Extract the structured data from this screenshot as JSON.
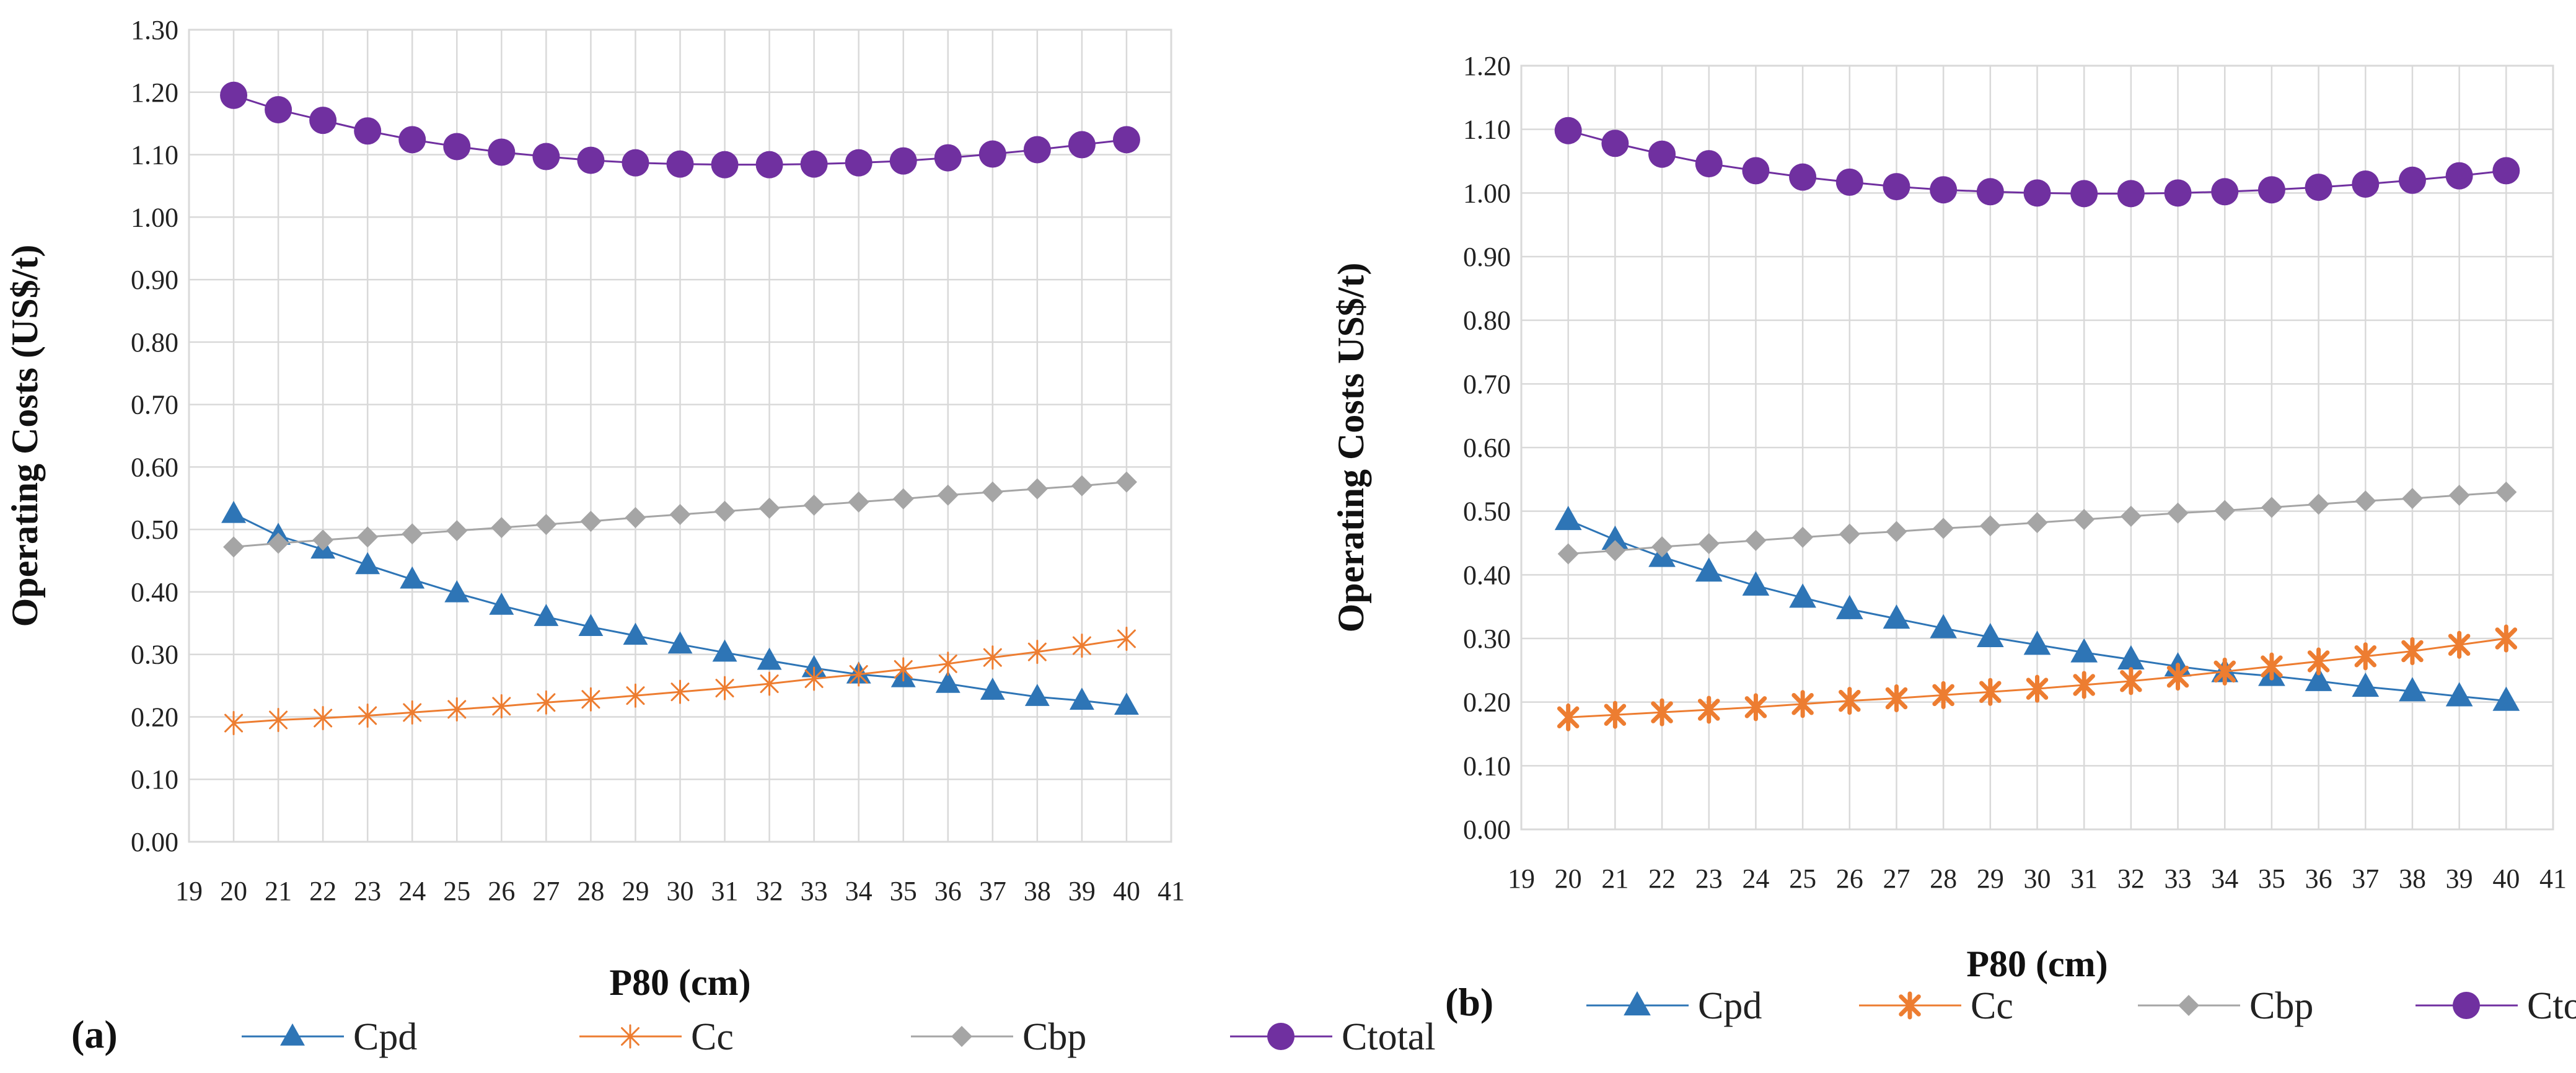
{
  "colors": {
    "Cpd": "#2E75B6",
    "Cc": "#ED7D31",
    "Cbp": "#A5A5A5",
    "Ctotal": "#7030A0",
    "grid": "#D9D9D9"
  },
  "chart_data": [
    {
      "panel_label": "(a)",
      "type": "line",
      "title": "",
      "xlabel": "P80 (cm)",
      "ylabel": "Operating Costs (US$/t)",
      "xlim": [
        19,
        41
      ],
      "ylim": [
        0.0,
        1.3
      ],
      "xticks": [
        "19",
        "20",
        "21",
        "22",
        "23",
        "24",
        "25",
        "26",
        "27",
        "28",
        "29",
        "30",
        "31",
        "32",
        "33",
        "34",
        "35",
        "36",
        "37",
        "38",
        "39",
        "40",
        "41"
      ],
      "yticks": [
        "0.00",
        "0.10",
        "0.20",
        "0.30",
        "0.40",
        "0.50",
        "0.60",
        "0.70",
        "0.80",
        "0.90",
        "1.00",
        "1.10",
        "1.20",
        "1.30"
      ],
      "grid": true,
      "legend_position": "bottom",
      "x": [
        20,
        21,
        22,
        23,
        24,
        25,
        26,
        27,
        28,
        29,
        30,
        31,
        32,
        33,
        34,
        35,
        36,
        37,
        38,
        39,
        40
      ],
      "series": [
        {
          "name": "Cpd",
          "marker": "triangle",
          "values": [
            0.525,
            0.49,
            0.468,
            0.443,
            0.42,
            0.398,
            0.378,
            0.36,
            0.344,
            0.33,
            0.316,
            0.303,
            0.29,
            0.278,
            0.268,
            0.262,
            0.253,
            0.242,
            0.232,
            0.226,
            0.218
          ]
        },
        {
          "name": "Cc",
          "marker": "star",
          "values": [
            0.19,
            0.195,
            0.198,
            0.202,
            0.207,
            0.212,
            0.217,
            0.223,
            0.228,
            0.234,
            0.24,
            0.246,
            0.253,
            0.261,
            0.268,
            0.276,
            0.285,
            0.295,
            0.304,
            0.314,
            0.325
          ]
        },
        {
          "name": "Cbp",
          "marker": "diamond",
          "values": [
            0.472,
            0.478,
            0.483,
            0.488,
            0.493,
            0.498,
            0.503,
            0.508,
            0.513,
            0.519,
            0.524,
            0.529,
            0.534,
            0.539,
            0.544,
            0.549,
            0.555,
            0.56,
            0.565,
            0.57,
            0.576
          ]
        },
        {
          "name": "Ctotal",
          "marker": "circle",
          "values": [
            1.195,
            1.172,
            1.155,
            1.138,
            1.124,
            1.113,
            1.104,
            1.097,
            1.091,
            1.087,
            1.085,
            1.084,
            1.084,
            1.085,
            1.087,
            1.09,
            1.095,
            1.101,
            1.108,
            1.116,
            1.124
          ]
        }
      ]
    },
    {
      "panel_label": "(b)",
      "type": "line",
      "title": "",
      "xlabel": "P80 (cm)",
      "ylabel": "Operating Costs US$/t)",
      "xlim": [
        19,
        41
      ],
      "ylim": [
        0.0,
        1.2
      ],
      "xticks": [
        "19",
        "20",
        "21",
        "22",
        "23",
        "24",
        "25",
        "26",
        "27",
        "28",
        "29",
        "30",
        "31",
        "32",
        "33",
        "34",
        "35",
        "36",
        "37",
        "38",
        "39",
        "40",
        "41"
      ],
      "yticks": [
        "0.00",
        "0.10",
        "0.20",
        "0.30",
        "0.40",
        "0.50",
        "0.60",
        "0.70",
        "0.80",
        "0.90",
        "1.00",
        "1.10",
        "1.20"
      ],
      "grid": true,
      "legend_position": "bottom",
      "x": [
        20,
        21,
        22,
        23,
        24,
        25,
        26,
        27,
        28,
        29,
        30,
        31,
        32,
        33,
        34,
        35,
        36,
        37,
        38,
        39,
        40
      ],
      "series": [
        {
          "name": "Cpd",
          "marker": "triangle",
          "values": [
            0.486,
            0.455,
            0.428,
            0.405,
            0.383,
            0.364,
            0.346,
            0.331,
            0.316,
            0.302,
            0.29,
            0.278,
            0.267,
            0.256,
            0.247,
            0.241,
            0.233,
            0.224,
            0.217,
            0.209,
            0.202
          ]
        },
        {
          "name": "Cc",
          "marker": "star",
          "values": [
            0.176,
            0.18,
            0.184,
            0.188,
            0.192,
            0.197,
            0.202,
            0.206,
            0.211,
            0.216,
            0.221,
            0.227,
            0.233,
            0.24,
            0.248,
            0.256,
            0.264,
            0.272,
            0.28,
            0.29,
            0.3
          ]
        },
        {
          "name": "Cbp",
          "marker": "diamond",
          "values": [
            0.433,
            0.438,
            0.444,
            0.449,
            0.454,
            0.459,
            0.464,
            0.468,
            0.473,
            0.477,
            0.482,
            0.487,
            0.492,
            0.497,
            0.501,
            0.506,
            0.511,
            0.516,
            0.52,
            0.525,
            0.53
          ]
        },
        {
          "name": "Ctotal",
          "marker": "circle",
          "values": [
            1.098,
            1.078,
            1.061,
            1.046,
            1.035,
            1.025,
            1.017,
            1.01,
            1.005,
            1.002,
            1.0,
            0.999,
            0.999,
            1.0,
            1.002,
            1.005,
            1.009,
            1.014,
            1.02,
            1.027,
            1.035
          ]
        }
      ]
    }
  ]
}
